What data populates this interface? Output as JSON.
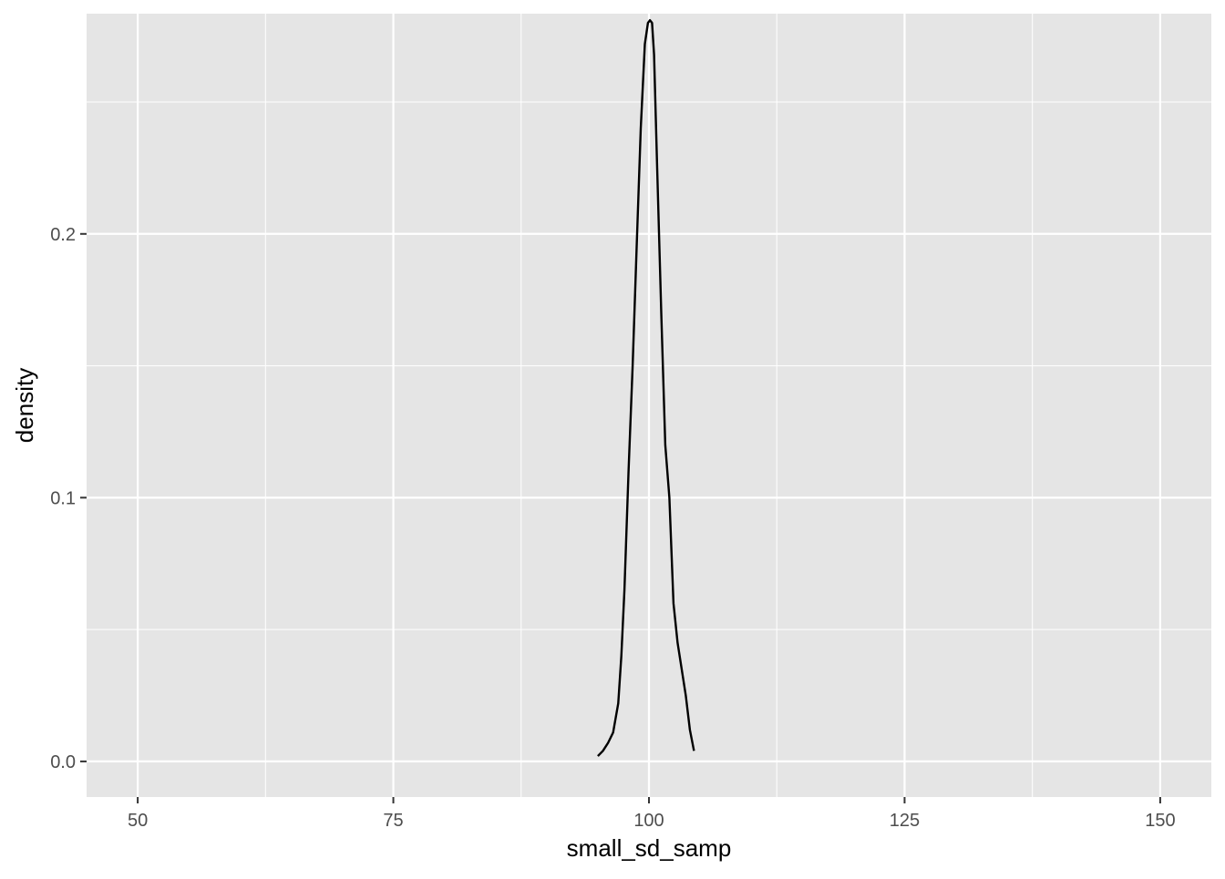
{
  "chart_data": {
    "type": "line",
    "title": "",
    "xlabel": "small_sd_samp",
    "ylabel": "density",
    "xlim": [
      45,
      155
    ],
    "ylim": [
      -0.0135,
      0.2835
    ],
    "x_ticks": [
      50,
      75,
      100,
      125,
      150
    ],
    "x_tick_labels": [
      "50",
      "75",
      "100",
      "125",
      "150"
    ],
    "x_minor_ticks": [
      62.5,
      87.5,
      112.5,
      137.5
    ],
    "y_ticks": [
      0.0,
      0.1,
      0.2
    ],
    "y_tick_labels": [
      "0.0",
      "0.1",
      "0.2"
    ],
    "y_minor_ticks": [
      0.05,
      0.15,
      0.25
    ],
    "grid": true,
    "legend": "none",
    "colors": {
      "panel_background": "#e5e5e5",
      "grid_line": "#ffffff",
      "line": "#000000",
      "tick_label": "#4d4d4d",
      "axis_title": "#000000"
    },
    "series": [
      {
        "x": [
          95.0,
          95.5,
          96.0,
          96.5,
          97.0,
          97.3,
          97.6,
          98.0,
          98.4,
          98.8,
          99.2,
          99.6,
          99.9,
          100.1,
          100.3,
          100.5,
          100.8,
          101.2,
          101.6,
          102.0,
          102.4,
          102.8,
          103.2,
          103.6,
          104.0,
          104.4
        ],
        "y": [
          0.002,
          0.004,
          0.007,
          0.011,
          0.022,
          0.04,
          0.065,
          0.11,
          0.15,
          0.195,
          0.24,
          0.272,
          0.28,
          0.281,
          0.28,
          0.268,
          0.225,
          0.17,
          0.12,
          0.1,
          0.06,
          0.045,
          0.035,
          0.025,
          0.012,
          0.004
        ]
      }
    ]
  }
}
